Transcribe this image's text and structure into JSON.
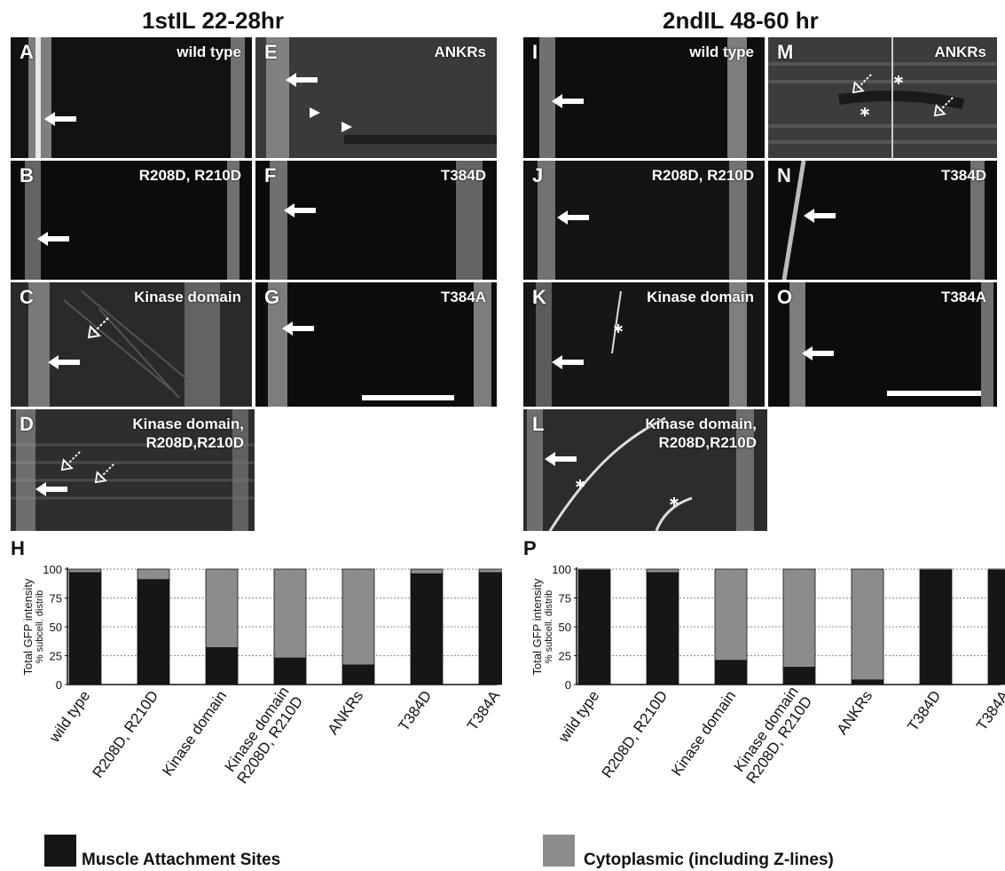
{
  "titles": {
    "left": "1stIL  22-28hr",
    "right": "2ndIL 48-60 hr"
  },
  "panels": [
    {
      "id": "A",
      "label": "A",
      "name": "wild type"
    },
    {
      "id": "B",
      "label": "B",
      "name": "R208D, R210D"
    },
    {
      "id": "C",
      "label": "C",
      "name": "Kinase domain"
    },
    {
      "id": "D",
      "label": "D",
      "name": "Kinase domain,\nR208D,R210D"
    },
    {
      "id": "E",
      "label": "E",
      "name": "ANKRs"
    },
    {
      "id": "F",
      "label": "F",
      "name": "T384D"
    },
    {
      "id": "G",
      "label": "G",
      "name": "T384A"
    },
    {
      "id": "I",
      "label": "I",
      "name": "wild type"
    },
    {
      "id": "J",
      "label": "J",
      "name": "R208D, R210D"
    },
    {
      "id": "K",
      "label": "K",
      "name": "Kinase domain"
    },
    {
      "id": "L",
      "label": "L",
      "name": "Kinase domain,\nR208D,R210D"
    },
    {
      "id": "M",
      "label": "M",
      "name": "ANKRs"
    },
    {
      "id": "N",
      "label": "N",
      "name": "T384D"
    },
    {
      "id": "O",
      "label": "O",
      "name": "T384A"
    }
  ],
  "chart_labels": {
    "left": "H",
    "right": "P"
  },
  "legend": {
    "black": "Muscle Attachment Sites",
    "gray": "Cytoplasmic (including Z-lines)",
    "black_color": "#161616",
    "gray_color": "#8c8c8c"
  },
  "chart_data": [
    {
      "type": "bar",
      "ylabel": "Total GFP intensity",
      "ylabel2": "% subcell. distrib",
      "ylim": [
        0,
        100
      ],
      "yticks": [
        0,
        25,
        50,
        75,
        100
      ],
      "categories": [
        "wild type",
        "R208D, R210D",
        "Kinase domain",
        "Kinase domain\nR208D, R210D",
        "ANKRs",
        "T384D",
        "T384A"
      ],
      "series": [
        {
          "name": "Muscle Attachment Sites",
          "color": "#161616",
          "values": [
            97,
            91,
            32,
            23,
            17,
            96,
            97
          ]
        },
        {
          "name": "Cytoplasmic (including Z-lines)",
          "color": "#8c8c8c",
          "values": [
            3,
            9,
            68,
            77,
            83,
            4,
            3
          ]
        }
      ]
    },
    {
      "type": "bar",
      "ylabel": "Total GFP intensity",
      "ylabel2": "% subcell. distrib",
      "ylim": [
        0,
        100
      ],
      "yticks": [
        0,
        25,
        50,
        75,
        100
      ],
      "categories": [
        "wild type",
        "R208D, R210D",
        "Kinase domain",
        "Kinase domain\nR208D, R210D",
        "ANKRs",
        "T384D",
        "T384A"
      ],
      "series": [
        {
          "name": "Muscle Attachment Sites",
          "color": "#161616",
          "values": [
            99,
            97,
            21,
            15,
            4,
            99,
            99
          ]
        },
        {
          "name": "Cytoplasmic (including Z-lines)",
          "color": "#8c8c8c",
          "values": [
            1,
            3,
            79,
            85,
            96,
            1,
            1
          ]
        }
      ]
    }
  ]
}
